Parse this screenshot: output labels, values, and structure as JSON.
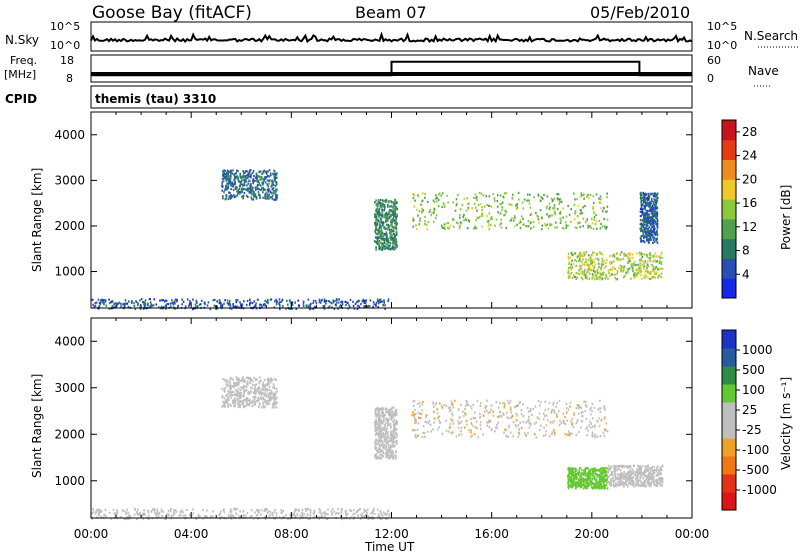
{
  "header": {
    "station": "Goose Bay (fitACF)",
    "beam": "Beam 07",
    "date": "05/Feb/2010"
  },
  "noise_panel": {
    "left_label": "N.Sky",
    "right_label": "N.Search",
    "left_ticks": [
      "10^5",
      "10^0"
    ],
    "right_ticks": [
      "10^5",
      "10^0"
    ]
  },
  "freq_panel": {
    "left_label_1": "Freq.",
    "left_label_2": "[MHz]",
    "right_label": "Nave",
    "left_ticks": [
      "18",
      "8"
    ],
    "right_ticks": [
      "60",
      "0"
    ]
  },
  "cpid": {
    "label": "CPID",
    "value": "themis (tau) 3310"
  },
  "x_axis": {
    "ticks": [
      "00:00",
      "04:00",
      "08:00",
      "12:00",
      "16:00",
      "20:00",
      "00:00"
    ],
    "label": "Time UT"
  },
  "colors": {
    "power_scale": [
      "#1428e6",
      "#2850b4",
      "#287864",
      "#50a050",
      "#8cc83c",
      "#f0c828",
      "#f08c1e",
      "#e63c14",
      "#c8141e"
    ],
    "velocity_scale": [
      "#1e32c8",
      "#285aa0",
      "#2d8c46",
      "#64c832",
      "#bebebe",
      "#bebebe",
      "#f0a028",
      "#f07814",
      "#e63214",
      "#dc1414"
    ]
  },
  "chart_data": [
    {
      "type": "heatmap",
      "name": "power",
      "ylabel": "Slant Range [km]",
      "yticks": [
        "1000",
        "2000",
        "3000",
        "4000"
      ],
      "ylim": [
        200,
        4500
      ],
      "xlim_hours": [
        0,
        24
      ],
      "colorbar": {
        "label": "Power [dB]",
        "ticks": [
          "4",
          "8",
          "12",
          "16",
          "20",
          "24",
          "28"
        ],
        "range": [
          0,
          30
        ]
      },
      "echo_regions": [
        {
          "t0": 0.0,
          "t1": 11.9,
          "r0": 200,
          "r1": 420,
          "level": 4
        },
        {
          "t0": 5.2,
          "t1": 7.4,
          "r0": 2600,
          "r1": 3250,
          "level": 6
        },
        {
          "t0": 11.3,
          "t1": 12.2,
          "r0": 1500,
          "r1": 2600,
          "level": 9
        },
        {
          "t0": 12.8,
          "t1": 20.6,
          "r0": 1950,
          "r1": 2750,
          "level": 14
        },
        {
          "t0": 19.0,
          "t1": 22.8,
          "r0": 850,
          "r1": 1450,
          "level": 16
        },
        {
          "t0": 21.9,
          "t1": 22.6,
          "r0": 1650,
          "r1": 2750,
          "level": 5
        }
      ]
    },
    {
      "type": "heatmap",
      "name": "velocity",
      "ylabel": "Slant Range [km]",
      "yticks": [
        "1000",
        "2000",
        "3000",
        "4000"
      ],
      "ylim": [
        200,
        4500
      ],
      "xlim_hours": [
        0,
        24
      ],
      "colorbar": {
        "label": "Velocity [m s⁻¹]",
        "ticks": [
          "1000",
          "500",
          "100",
          "25",
          "-25",
          "-100",
          "-500",
          "-1000"
        ],
        "range": [
          -1000,
          1000
        ]
      },
      "echo_regions": [
        {
          "t0": 0.0,
          "t1": 11.9,
          "r0": 200,
          "r1": 420,
          "velocity": 0
        },
        {
          "t0": 5.2,
          "t1": 7.4,
          "r0": 2600,
          "r1": 3250,
          "velocity": 0
        },
        {
          "t0": 11.3,
          "t1": 12.2,
          "r0": 1500,
          "r1": 2600,
          "velocity": 0
        },
        {
          "t0": 12.8,
          "t1": 20.6,
          "r0": 1950,
          "r1": 2750,
          "velocity": -20
        },
        {
          "t0": 19.0,
          "t1": 20.6,
          "r0": 850,
          "r1": 1300,
          "velocity": 150
        },
        {
          "t0": 20.6,
          "t1": 22.8,
          "r0": 900,
          "r1": 1350,
          "velocity": 0
        }
      ]
    },
    {
      "type": "line",
      "name": "frequency",
      "x_hours": [
        0,
        12.0,
        12.0,
        21.9,
        21.9,
        24
      ],
      "values": [
        10.5,
        10.5,
        15.5,
        15.5,
        10.5,
        10.5
      ],
      "ylim": [
        8,
        18
      ]
    }
  ]
}
